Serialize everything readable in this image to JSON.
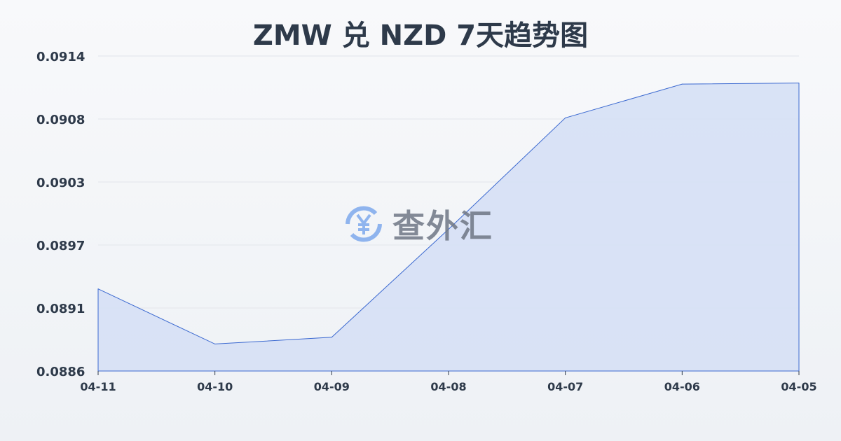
{
  "chart_data": {
    "type": "area",
    "title": "ZMW 兑 NZD 7天趋势图",
    "categories": [
      "04-11",
      "04-10",
      "04-09",
      "04-08",
      "04-07",
      "04-06",
      "04-05"
    ],
    "series": [
      {
        "values": [
          0.08933,
          0.08884,
          0.0889,
          0.08986,
          0.09085,
          0.09115,
          0.09116
        ]
      }
    ],
    "yticks": [
      "0.0886",
      "0.0891",
      "0.0897",
      "0.0903",
      "0.0908",
      "0.0914"
    ],
    "ylim": [
      0.0886,
      0.0914
    ],
    "grid": true,
    "colors": {
      "line": "#3a68d0",
      "fill": "#d6e0f5"
    }
  },
  "watermark": {
    "text": "查外汇",
    "icon": "yen-exchange-icon"
  }
}
